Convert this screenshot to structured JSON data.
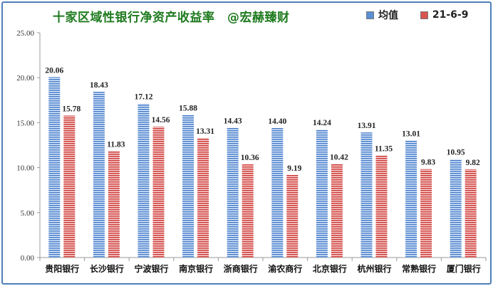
{
  "chart_data": {
    "type": "bar",
    "title": "十家区域性银行净资产收益率　@宏赫臻财",
    "categories": [
      "贵阳银行",
      "长沙银行",
      "宁波银行",
      "南京银行",
      "浙商银行",
      "渝农商行",
      "北京银行",
      "杭州银行",
      "常熟银行",
      "厦门银行"
    ],
    "series": [
      {
        "name": "均值",
        "values": [
          20.06,
          18.43,
          17.12,
          15.88,
          14.43,
          14.4,
          14.24,
          13.91,
          13.01,
          10.95
        ],
        "value_labels": [
          "20.06",
          "18.43",
          "17.12",
          "15.88",
          "14.43",
          "14.40",
          "14.24",
          "13.91",
          "13.01",
          "10.95"
        ],
        "color": "#5b8fd4"
      },
      {
        "name": "21-6-9",
        "values": [
          15.78,
          11.83,
          14.56,
          13.31,
          10.36,
          9.19,
          10.42,
          11.35,
          9.83,
          9.82
        ],
        "value_labels": [
          "15.78",
          "11.83",
          "14.56",
          "13.31",
          "10.36",
          "9.19",
          "10.42",
          "11.35",
          "9.83",
          "9.82"
        ],
        "color": "#d9534f"
      }
    ],
    "ylim": [
      0,
      25
    ],
    "yticks": [
      "0.00",
      "5.00",
      "10.00",
      "15.00",
      "20.00",
      "25.00"
    ],
    "xlabel": "",
    "ylabel": "",
    "grid": false,
    "legend": "top-right"
  }
}
